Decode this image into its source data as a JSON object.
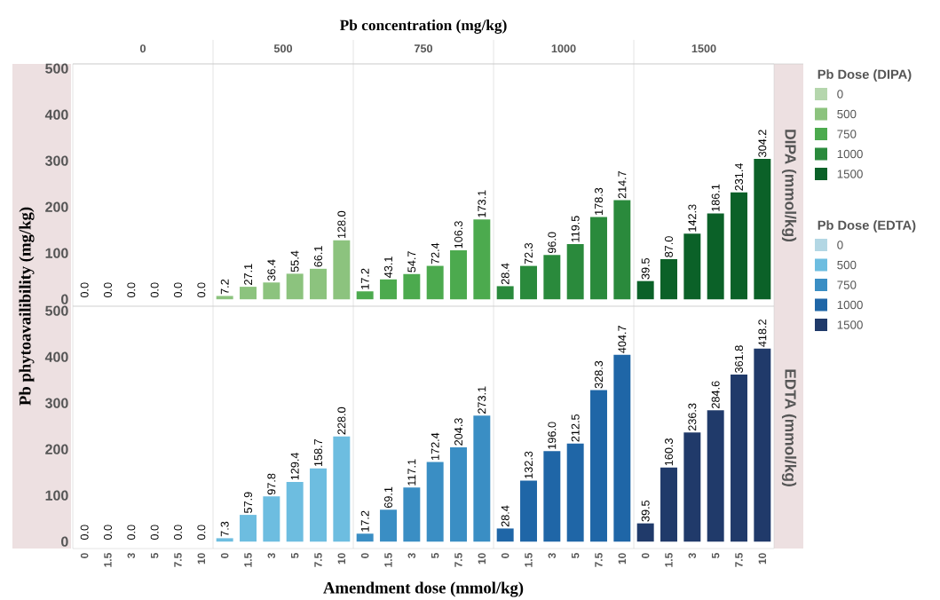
{
  "chart_data": [
    {
      "type": "bar",
      "title": "Pb concentration (mg/kg)",
      "ylabel": "Pb phytoavailibility (mg/kg)",
      "y2label": "DIPA (mmol/kg)",
      "legend_title": "Pb Dose (DIPA)",
      "legend": "right",
      "tick_labels": "y",
      "annotations": [
        "0",
        "500",
        "750",
        "1000",
        "1500"
      ],
      "categories": [
        "0",
        "1.5",
        "3",
        "5",
        "7.5",
        "10",
        "0",
        "1.5",
        "3",
        "5",
        "7.5",
        "10",
        "0",
        "1.5",
        "3",
        "5",
        "7.5",
        "10",
        "0",
        "1.5",
        "3",
        "5",
        "7.5",
        "10",
        "0",
        "1.5",
        "3",
        "5",
        "7.5",
        "10"
      ],
      "ylim": [
        -15,
        510
      ],
      "yticks": [
        0,
        100,
        200,
        300,
        400,
        500
      ],
      "series": [
        {
          "name": "0",
          "color": "#b5d6ad",
          "values": [
            0,
            0,
            0,
            0,
            0,
            0,
            null,
            null,
            null,
            null,
            null,
            null,
            null,
            null,
            null,
            null,
            null,
            null,
            null,
            null,
            null,
            null,
            null,
            null,
            null,
            null,
            null,
            null,
            null,
            null
          ],
          "value_labels": [
            "0.0",
            "0.0",
            "0.0",
            "0.0",
            "0.0",
            "0.0",
            null,
            null,
            null,
            null,
            null,
            null,
            null,
            null,
            null,
            null,
            null,
            null,
            null,
            null,
            null,
            null,
            null,
            null,
            null,
            null,
            null,
            null,
            null,
            null
          ]
        },
        {
          "name": "500",
          "color": "#8cc37e",
          "values": [
            null,
            null,
            null,
            null,
            null,
            null,
            7.2,
            27.1,
            36.4,
            55.4,
            66.1,
            128.0,
            null,
            null,
            null,
            null,
            null,
            null,
            null,
            null,
            null,
            null,
            null,
            null,
            null,
            null,
            null,
            null,
            null,
            null
          ],
          "value_labels": [
            null,
            null,
            null,
            null,
            null,
            null,
            "7.2",
            "27.1",
            "36.4",
            "55.4",
            "66.1",
            "128.0",
            null,
            null,
            null,
            null,
            null,
            null,
            null,
            null,
            null,
            null,
            null,
            null,
            null,
            null,
            null,
            null,
            null,
            null
          ]
        },
        {
          "name": "750",
          "color": "#4caa4e",
          "values": [
            null,
            null,
            null,
            null,
            null,
            null,
            null,
            null,
            null,
            null,
            null,
            null,
            17.2,
            43.1,
            54.7,
            72.4,
            106.3,
            173.1,
            null,
            null,
            null,
            null,
            null,
            null,
            null,
            null,
            null,
            null,
            null,
            null
          ],
          "value_labels": [
            null,
            null,
            null,
            null,
            null,
            null,
            null,
            null,
            null,
            null,
            null,
            null,
            "17.2",
            "43.1",
            "54.7",
            "72.4",
            "106.3",
            "173.1",
            null,
            null,
            null,
            null,
            null,
            null,
            null,
            null,
            null,
            null,
            null,
            null
          ]
        },
        {
          "name": "1000",
          "color": "#2a8a3c",
          "values": [
            null,
            null,
            null,
            null,
            null,
            null,
            null,
            null,
            null,
            null,
            null,
            null,
            null,
            null,
            null,
            null,
            null,
            null,
            28.4,
            72.3,
            96.0,
            119.5,
            178.3,
            214.7,
            null,
            null,
            null,
            null,
            null,
            null
          ],
          "value_labels": [
            null,
            null,
            null,
            null,
            null,
            null,
            null,
            null,
            null,
            null,
            null,
            null,
            null,
            null,
            null,
            null,
            null,
            null,
            "28.4",
            "72.3",
            "96.0",
            "119.5",
            "178.3",
            "214.7",
            null,
            null,
            null,
            null,
            null,
            null
          ]
        },
        {
          "name": "1500",
          "color": "#0b6128",
          "values": [
            null,
            null,
            null,
            null,
            null,
            null,
            null,
            null,
            null,
            null,
            null,
            null,
            null,
            null,
            null,
            null,
            null,
            null,
            null,
            null,
            null,
            null,
            null,
            null,
            39.5,
            87.0,
            142.3,
            186.1,
            231.4,
            304.2
          ],
          "value_labels": [
            null,
            null,
            null,
            null,
            null,
            null,
            null,
            null,
            null,
            null,
            null,
            null,
            null,
            null,
            null,
            null,
            null,
            null,
            null,
            null,
            null,
            null,
            null,
            null,
            "39.5",
            "87.0",
            "142.3",
            "186.1",
            "231.4",
            "304.2"
          ]
        }
      ]
    },
    {
      "type": "bar",
      "xlabel": "Amendment dose (mmol/kg)",
      "y2label": "EDTA (mmol/kg)",
      "legend_title": "Pb Dose (EDTA)",
      "legend": "right",
      "categories": [
        "0",
        "1.5",
        "3",
        "5",
        "7.5",
        "10",
        "0",
        "1.5",
        "3",
        "5",
        "7.5",
        "10",
        "0",
        "1.5",
        "3",
        "5",
        "7.5",
        "10",
        "0",
        "1.5",
        "3",
        "5",
        "7.5",
        "10",
        "0",
        "1.5",
        "3",
        "5",
        "7.5",
        "10"
      ],
      "ylim": [
        -15,
        510
      ],
      "yticks": [
        0,
        100,
        200,
        300,
        400,
        500
      ],
      "series": [
        {
          "name": "0",
          "color": "#b3d7e4",
          "values": [
            0,
            0,
            0,
            0,
            0,
            0,
            null,
            null,
            null,
            null,
            null,
            null,
            null,
            null,
            null,
            null,
            null,
            null,
            null,
            null,
            null,
            null,
            null,
            null,
            null,
            null,
            null,
            null,
            null,
            null
          ],
          "value_labels": [
            "0.0",
            "0.0",
            "0.0",
            "0.0",
            "0.0",
            "0.0",
            null,
            null,
            null,
            null,
            null,
            null,
            null,
            null,
            null,
            null,
            null,
            null,
            null,
            null,
            null,
            null,
            null,
            null,
            null,
            null,
            null,
            null,
            null,
            null
          ]
        },
        {
          "name": "500",
          "color": "#6dbde0",
          "values": [
            null,
            null,
            null,
            null,
            null,
            null,
            7.3,
            57.9,
            97.8,
            129.4,
            158.7,
            228.0,
            null,
            null,
            null,
            null,
            null,
            null,
            null,
            null,
            null,
            null,
            null,
            null,
            null,
            null,
            null,
            null,
            null,
            null
          ],
          "value_labels": [
            null,
            null,
            null,
            null,
            null,
            null,
            "7.3",
            "57.9",
            "97.8",
            "129.4",
            "158.7",
            "228.0",
            null,
            null,
            null,
            null,
            null,
            null,
            null,
            null,
            null,
            null,
            null,
            null,
            null,
            null,
            null,
            null,
            null,
            null
          ]
        },
        {
          "name": "750",
          "color": "#3a8ec4",
          "values": [
            null,
            null,
            null,
            null,
            null,
            null,
            null,
            null,
            null,
            null,
            null,
            null,
            17.2,
            69.1,
            117.1,
            172.4,
            204.3,
            273.1,
            null,
            null,
            null,
            null,
            null,
            null,
            null,
            null,
            null,
            null,
            null,
            null
          ],
          "value_labels": [
            null,
            null,
            null,
            null,
            null,
            null,
            null,
            null,
            null,
            null,
            null,
            null,
            "17.2",
            "69.1",
            "117.1",
            "172.4",
            "204.3",
            "273.1",
            null,
            null,
            null,
            null,
            null,
            null,
            null,
            null,
            null,
            null,
            null,
            null
          ]
        },
        {
          "name": "1000",
          "color": "#1f66a7",
          "values": [
            null,
            null,
            null,
            null,
            null,
            null,
            null,
            null,
            null,
            null,
            null,
            null,
            null,
            null,
            null,
            null,
            null,
            null,
            28.4,
            132.3,
            196.0,
            212.5,
            328.3,
            404.7,
            null,
            null,
            null,
            null,
            null,
            null
          ],
          "value_labels": [
            null,
            null,
            null,
            null,
            null,
            null,
            null,
            null,
            null,
            null,
            null,
            null,
            null,
            null,
            null,
            null,
            null,
            null,
            "28.4",
            "132.3",
            "196.0",
            "212.5",
            "328.3",
            "404.7",
            null,
            null,
            null,
            null,
            null,
            null
          ]
        },
        {
          "name": "1500",
          "color": "#203a6a",
          "values": [
            null,
            null,
            null,
            null,
            null,
            null,
            null,
            null,
            null,
            null,
            null,
            null,
            null,
            null,
            null,
            null,
            null,
            null,
            null,
            null,
            null,
            null,
            null,
            null,
            39.5,
            160.3,
            236.3,
            284.6,
            361.8,
            418.2
          ],
          "value_labels": [
            null,
            null,
            null,
            null,
            null,
            null,
            null,
            null,
            null,
            null,
            null,
            null,
            null,
            null,
            null,
            null,
            null,
            null,
            null,
            null,
            null,
            null,
            null,
            null,
            "39.5",
            "160.3",
            "236.3",
            "284.6",
            "361.8",
            "418.2"
          ]
        }
      ]
    }
  ]
}
